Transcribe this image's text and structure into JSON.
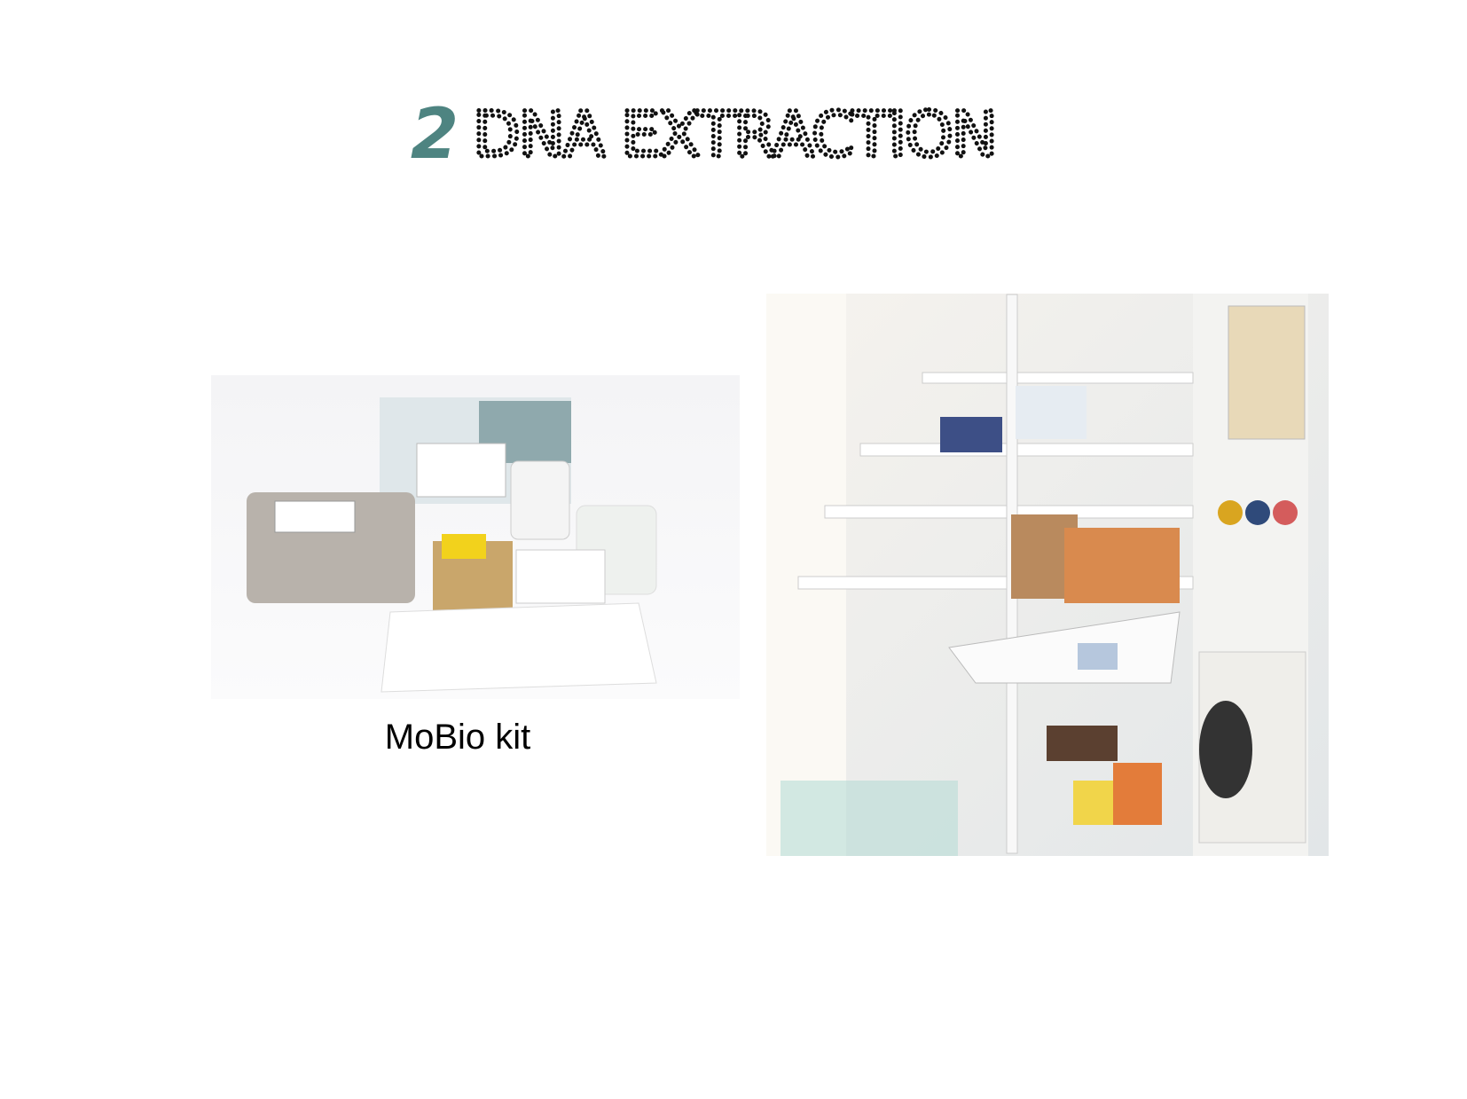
{
  "header": {
    "number": "2",
    "title": "DNA EXTRACTION"
  },
  "left_image": {
    "caption": "MoBio kit"
  }
}
